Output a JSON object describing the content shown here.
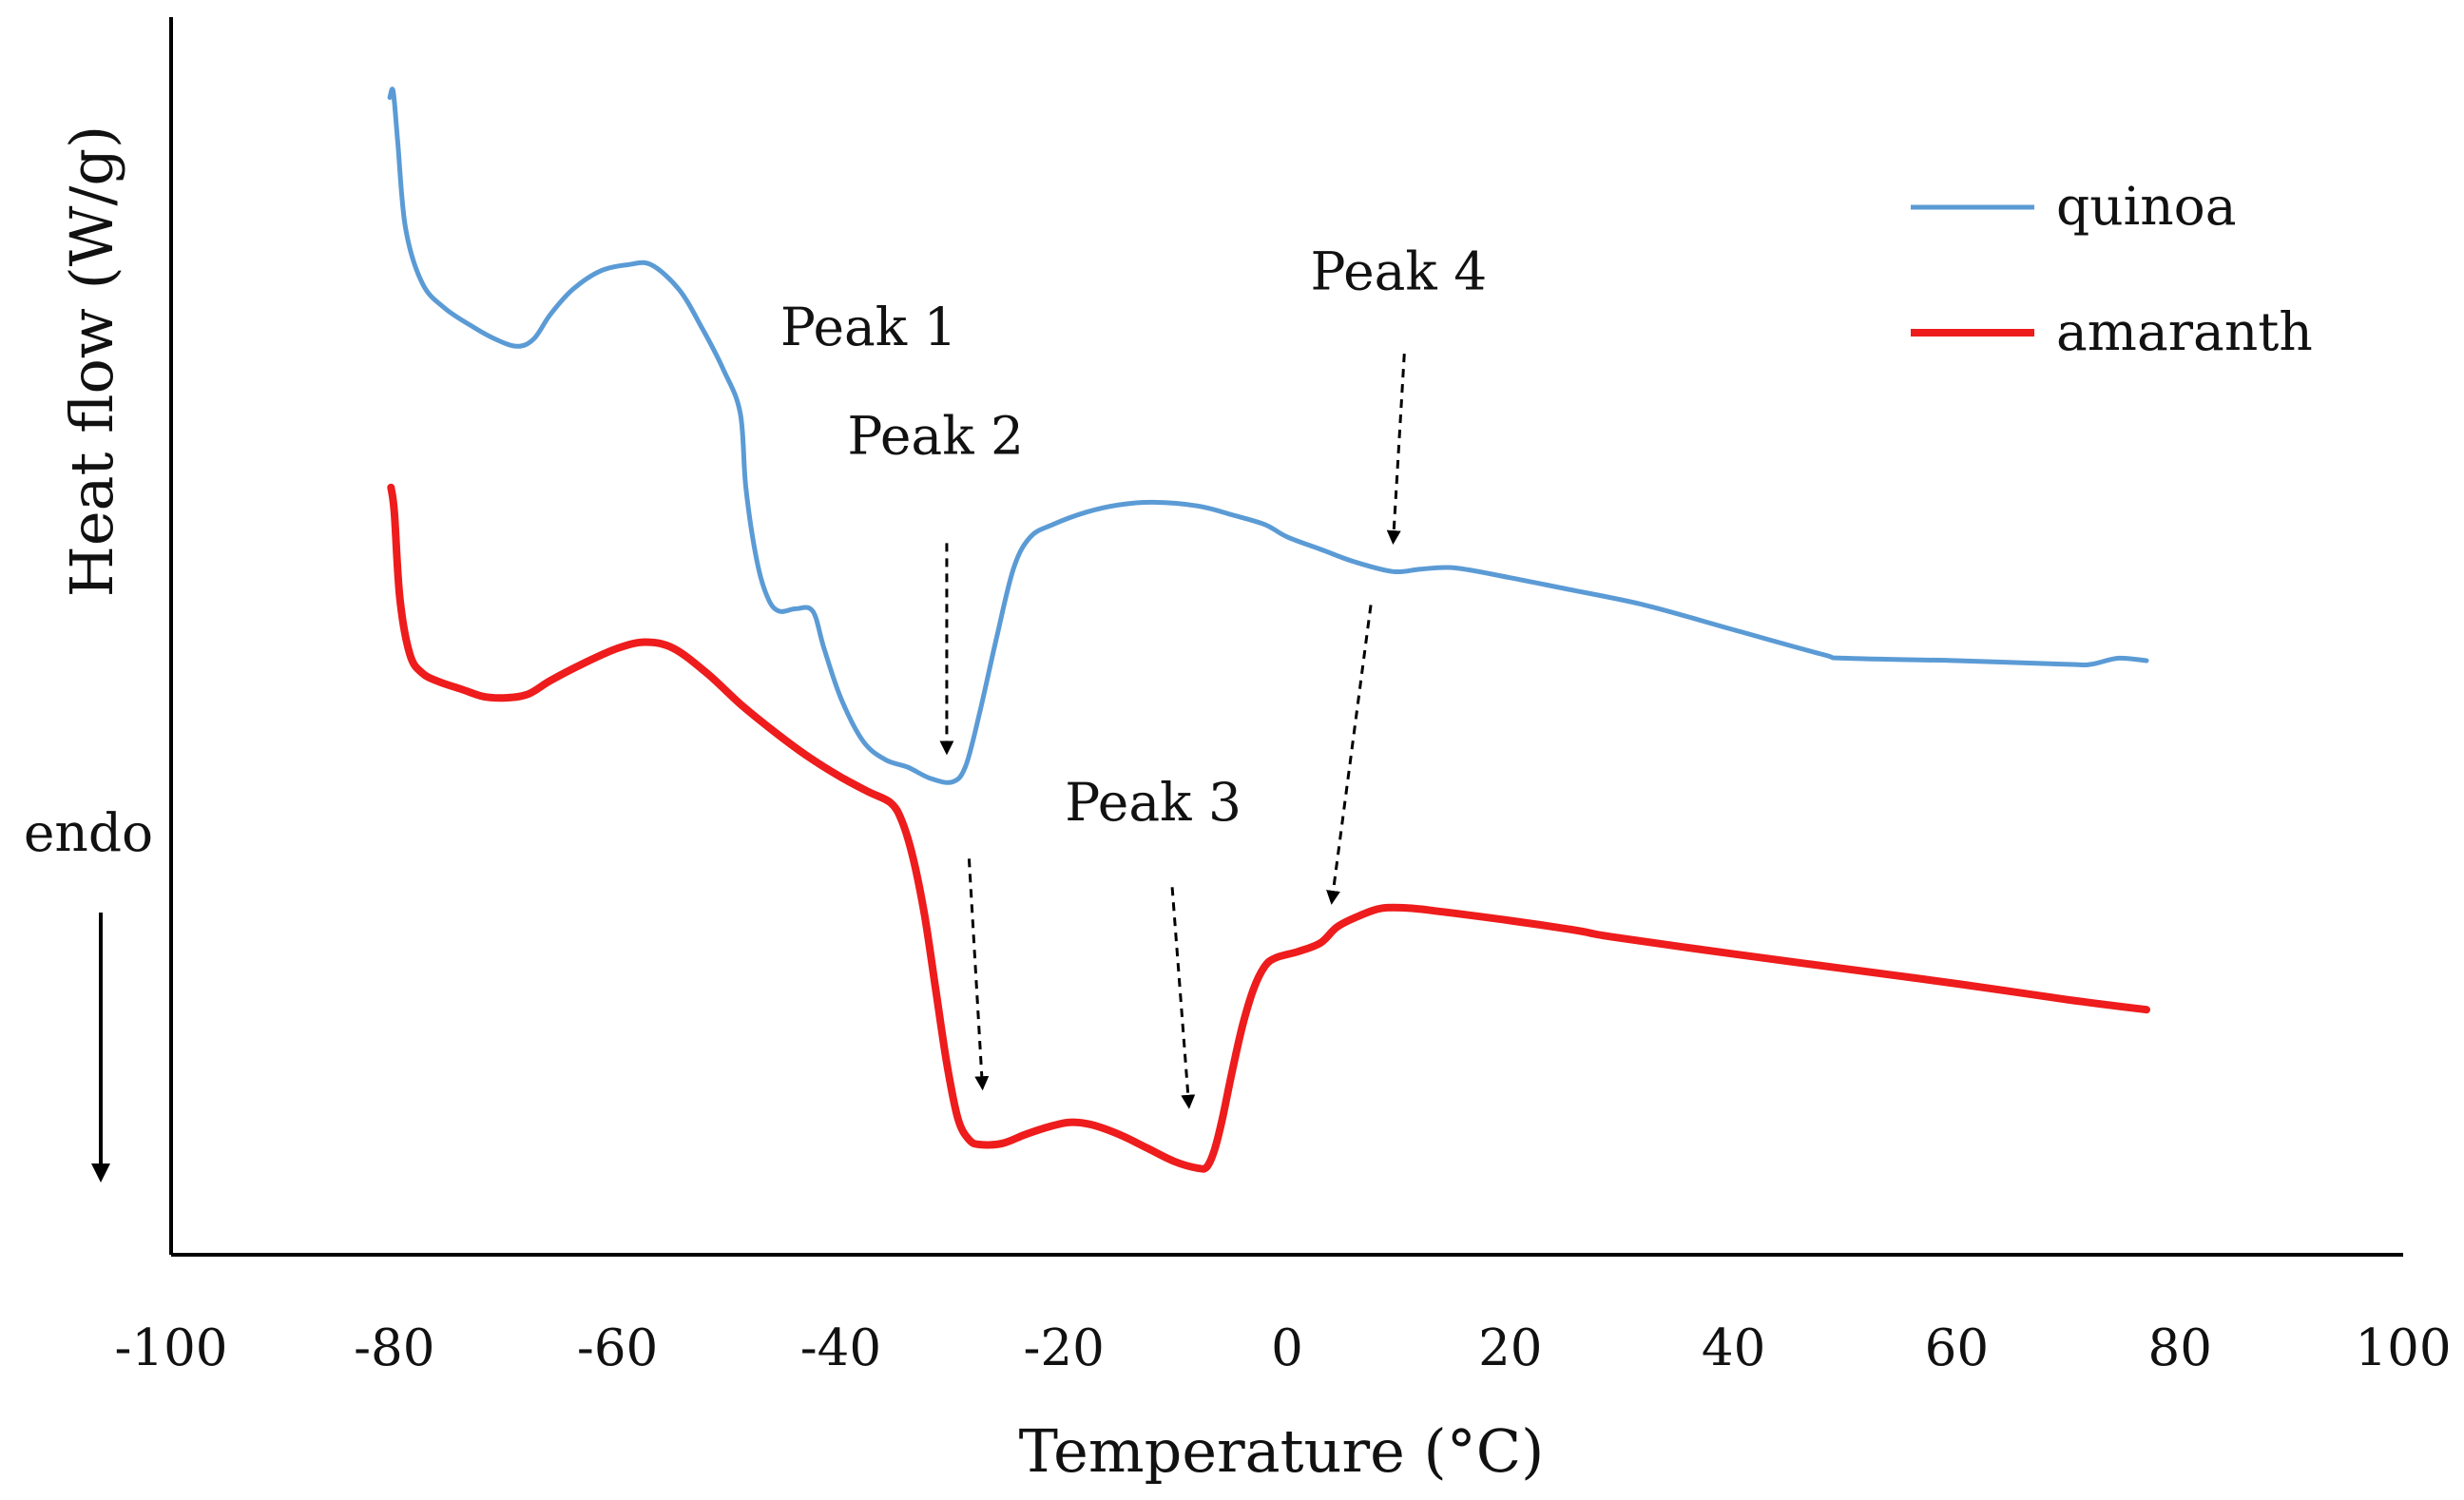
{
  "chart_data": {
    "type": "line",
    "title": "",
    "xlabel": "Temperature (°C)",
    "ylabel": "Heat flow (W/g)",
    "xlim": [
      -100,
      100
    ],
    "ylim": [
      0,
      100
    ],
    "y_units": "relative (no numeric y tick labels shown)",
    "x_ticks": [
      -100,
      -80,
      -60,
      -40,
      -20,
      0,
      20,
      40,
      60,
      80,
      100
    ],
    "x_tick_labels": [
      "-100",
      "-80",
      "-60",
      "-40",
      "-20",
      "0",
      "20",
      "40",
      "60",
      "80",
      "100"
    ],
    "grid": false,
    "legend_position": "top-right",
    "series": [
      {
        "name": "quinoa",
        "color": "#5b9bd5",
        "points": [
          [
            -80.4,
            93.5
          ],
          [
            -80.1,
            94.0
          ],
          [
            -79.7,
            90.0
          ],
          [
            -79.0,
            83.0
          ],
          [
            -77.5,
            78.5
          ],
          [
            -75.5,
            76.5
          ],
          [
            -73.0,
            75.0
          ],
          [
            -71.0,
            74.0
          ],
          [
            -69.0,
            73.4
          ],
          [
            -67.5,
            74.0
          ],
          [
            -66.0,
            76.0
          ],
          [
            -64.0,
            78.0
          ],
          [
            -61.5,
            79.5
          ],
          [
            -59.0,
            80.0
          ],
          [
            -57.0,
            80.0
          ],
          [
            -54.5,
            78.0
          ],
          [
            -52.5,
            75.0
          ],
          [
            -50.5,
            71.5
          ],
          [
            -49.0,
            68.0
          ],
          [
            -48.5,
            62.0
          ],
          [
            -47.5,
            56.0
          ],
          [
            -46.5,
            53.0
          ],
          [
            -45.5,
            52.0
          ],
          [
            -44.0,
            52.2
          ],
          [
            -42.5,
            52.0
          ],
          [
            -41.5,
            49.0
          ],
          [
            -40.0,
            45.0
          ],
          [
            -38.0,
            41.5
          ],
          [
            -36.0,
            40.0
          ],
          [
            -34.0,
            39.4
          ],
          [
            -32.0,
            38.5
          ],
          [
            -30.0,
            38.2
          ],
          [
            -28.8,
            39.5
          ],
          [
            -27.5,
            44.0
          ],
          [
            -26.0,
            50.0
          ],
          [
            -24.5,
            55.5
          ],
          [
            -23.0,
            58.0
          ],
          [
            -21.0,
            59.0
          ],
          [
            -18.0,
            60.0
          ],
          [
            -15.0,
            60.6
          ],
          [
            -12.0,
            60.8
          ],
          [
            -8.0,
            60.5
          ],
          [
            -5.0,
            59.8
          ],
          [
            -2.0,
            59.0
          ],
          [
            0.0,
            58.0
          ],
          [
            3.0,
            57.0
          ],
          [
            6.0,
            56.0
          ],
          [
            9.5,
            55.2
          ],
          [
            12.0,
            55.4
          ],
          [
            15.0,
            55.5
          ],
          [
            20.0,
            54.7
          ],
          [
            25.0,
            53.8
          ],
          [
            32.0,
            52.5
          ],
          [
            40.0,
            50.5
          ],
          [
            48.0,
            48.5
          ],
          [
            50.0,
            48.2
          ],
          [
            60.0,
            48.0
          ],
          [
            70.0,
            47.7
          ],
          [
            72.0,
            47.7
          ],
          [
            74.5,
            48.2
          ],
          [
            77.0,
            48.0
          ]
        ]
      },
      {
        "name": "amaranth",
        "color": "#ee1c1c",
        "points": [
          [
            -80.3,
            62.0
          ],
          [
            -80.0,
            60.0
          ],
          [
            -79.5,
            53.0
          ],
          [
            -78.6,
            48.5
          ],
          [
            -77.5,
            47.0
          ],
          [
            -76.0,
            46.3
          ],
          [
            -74.0,
            45.7
          ],
          [
            -72.0,
            45.1
          ],
          [
            -70.0,
            45.0
          ],
          [
            -68.0,
            45.3
          ],
          [
            -66.0,
            46.4
          ],
          [
            -63.0,
            47.8
          ],
          [
            -60.0,
            49.0
          ],
          [
            -57.5,
            49.5
          ],
          [
            -55.0,
            49.0
          ],
          [
            -52.0,
            47.0
          ],
          [
            -49.0,
            44.5
          ],
          [
            -46.0,
            42.3
          ],
          [
            -43.0,
            40.3
          ],
          [
            -40.0,
            38.6
          ],
          [
            -37.5,
            37.4
          ],
          [
            -35.5,
            36.5
          ],
          [
            -34.5,
            35.0
          ],
          [
            -33.5,
            32.0
          ],
          [
            -32.5,
            27.5
          ],
          [
            -31.5,
            21.5
          ],
          [
            -30.5,
            15.5
          ],
          [
            -29.5,
            11.0
          ],
          [
            -28.5,
            9.3
          ],
          [
            -27.5,
            8.9
          ],
          [
            -25.5,
            9.0
          ],
          [
            -23.5,
            9.7
          ],
          [
            -21.5,
            10.3
          ],
          [
            -19.5,
            10.7
          ],
          [
            -17.5,
            10.5
          ],
          [
            -15.0,
            9.7
          ],
          [
            -12.5,
            8.6
          ],
          [
            -10.0,
            7.5
          ],
          [
            -8.0,
            7.0
          ],
          [
            -7.2,
            7.1
          ],
          [
            -6.5,
            8.5
          ],
          [
            -5.8,
            11.0
          ],
          [
            -5.0,
            14.5
          ],
          [
            -4.0,
            18.5
          ],
          [
            -3.0,
            21.5
          ],
          [
            -2.0,
            23.3
          ],
          [
            -1.0,
            24.0
          ],
          [
            1.0,
            24.5
          ],
          [
            3.0,
            25.2
          ],
          [
            4.5,
            26.5
          ],
          [
            6.5,
            27.4
          ],
          [
            8.5,
            28.0
          ],
          [
            11.0,
            28.0
          ],
          [
            14.0,
            27.7
          ],
          [
            20.0,
            27.0
          ],
          [
            26.0,
            26.2
          ],
          [
            29.0,
            25.7
          ],
          [
            40.0,
            24.3
          ],
          [
            50.0,
            23.1
          ],
          [
            60.0,
            21.9
          ],
          [
            70.0,
            20.6
          ],
          [
            77.0,
            19.8
          ]
        ]
      }
    ],
    "annotations": [
      {
        "label": "Peak 1",
        "text_at": [
          -37.5,
          73.5
        ],
        "arrows": []
      },
      {
        "label": "Peak 2",
        "text_at": [
          -31.5,
          64.7
        ],
        "arrows": [
          {
            "from": [
              -30.5,
              57.5
            ],
            "to": [
              -30.5,
              40.6
            ]
          },
          {
            "from": [
              -28.5,
              32.0
            ],
            "to": [
              -27.3,
              13.5
            ]
          }
        ]
      },
      {
        "label": "Peak 3",
        "text_at": [
          -12.0,
          35.1
        ],
        "arrows": [
          {
            "from": [
              -10.3,
              29.7
            ],
            "to": [
              -8.8,
              12.0
            ]
          }
        ]
      },
      {
        "label": "Peak 4",
        "text_at": [
          10.0,
          78.0
        ],
        "arrows": [
          {
            "from": [
              10.5,
              72.8
            ],
            "to": [
              9.5,
              57.6
            ]
          },
          {
            "from": [
              7.5,
              52.5
            ],
            "to": [
              4.0,
              28.5
            ]
          }
        ]
      }
    ],
    "side_annotation": {
      "label": "endo",
      "arrow_direction": "down"
    }
  }
}
